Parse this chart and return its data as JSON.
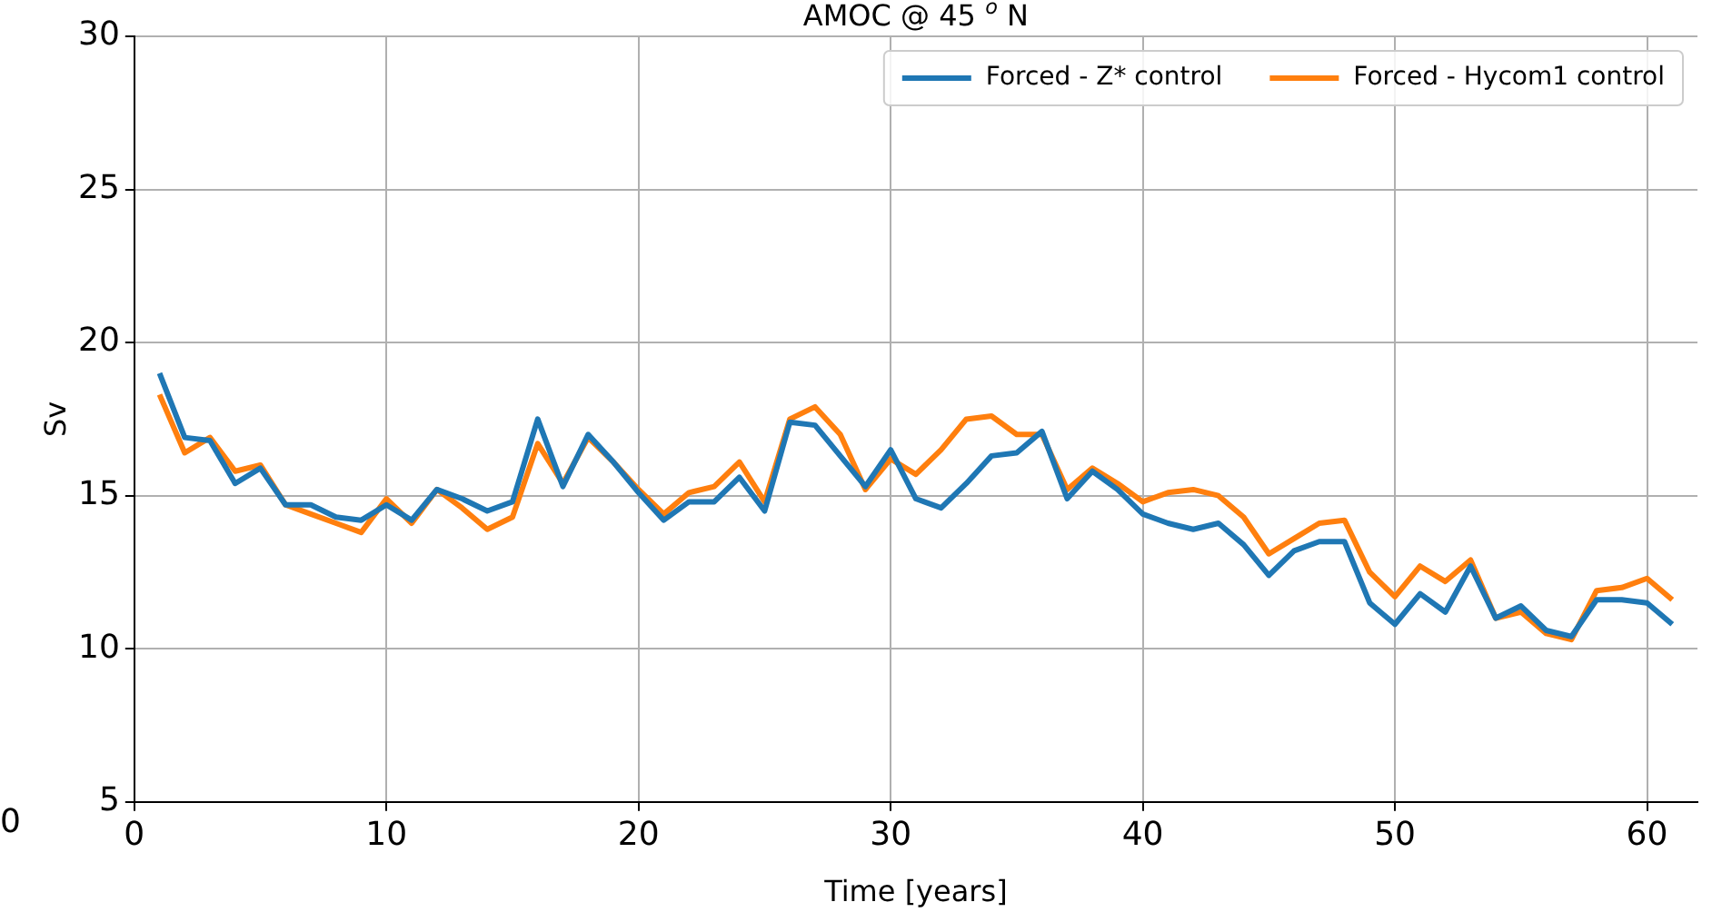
{
  "chart_data": {
    "type": "line",
    "title": "AMOC @ 45 $^{o}$ N",
    "xlabel": "Time [years]",
    "ylabel": "Sv",
    "x": [
      1,
      2,
      3,
      4,
      5,
      6,
      7,
      8,
      9,
      10,
      11,
      12,
      13,
      14,
      15,
      16,
      17,
      18,
      19,
      20,
      21,
      22,
      23,
      24,
      25,
      26,
      27,
      28,
      29,
      30,
      31,
      32,
      33,
      34,
      35,
      36,
      37,
      38,
      39,
      40,
      41,
      42,
      43,
      44,
      45,
      46,
      47,
      48,
      49,
      50,
      51,
      52,
      53,
      54,
      55,
      56,
      57,
      58,
      59,
      60,
      61
    ],
    "series": [
      {
        "name": "Forced - Z* control",
        "color": "#1f77b4",
        "values": [
          19.0,
          16.9,
          16.8,
          15.4,
          15.9,
          14.7,
          14.7,
          14.3,
          14.2,
          14.7,
          14.2,
          15.2,
          14.9,
          14.5,
          14.8,
          17.5,
          15.3,
          17.0,
          16.1,
          15.1,
          14.2,
          14.8,
          14.8,
          15.6,
          14.5,
          17.4,
          17.3,
          16.3,
          15.3,
          16.5,
          14.9,
          14.6,
          15.4,
          16.3,
          16.4,
          17.1,
          14.9,
          15.8,
          15.2,
          14.4,
          14.1,
          13.9,
          14.1,
          13.4,
          12.4,
          13.2,
          13.5,
          13.5,
          11.5,
          10.8,
          11.8,
          11.2,
          12.7,
          11.0,
          11.4,
          10.6,
          10.4,
          11.6,
          11.6,
          11.5,
          10.8
        ]
      },
      {
        "name": "Forced - Hycom1 control",
        "color": "#ff7f0e",
        "values": [
          18.3,
          16.4,
          16.9,
          15.8,
          16.0,
          14.7,
          14.4,
          14.1,
          13.8,
          14.9,
          14.1,
          15.2,
          14.6,
          13.9,
          14.3,
          16.7,
          15.4,
          16.9,
          16.1,
          15.2,
          14.4,
          15.1,
          15.3,
          16.1,
          14.8,
          17.5,
          17.9,
          17.0,
          15.2,
          16.2,
          15.7,
          16.5,
          17.5,
          17.6,
          17.0,
          17.0,
          15.2,
          15.9,
          15.4,
          14.8,
          15.1,
          15.2,
          15.0,
          14.3,
          13.1,
          13.6,
          14.1,
          14.2,
          12.5,
          11.7,
          12.7,
          12.2,
          12.9,
          11.0,
          11.2,
          10.5,
          10.3,
          11.9,
          12.0,
          12.3,
          11.6
        ]
      }
    ],
    "xlim": [
      0,
      62
    ],
    "xticks": [
      0,
      10,
      20,
      30,
      40,
      50,
      60
    ],
    "ylim": [
      5,
      30
    ],
    "yticks": [
      5,
      10,
      15,
      20,
      25,
      30
    ],
    "grid": true,
    "legend": "top right",
    "marker": "none",
    "line_style": "solid",
    "annotations": [
      "0"
    ]
  }
}
